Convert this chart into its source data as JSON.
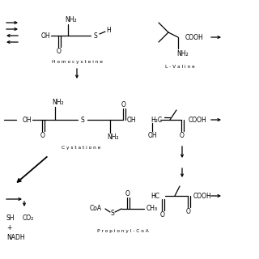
{
  "labels": {
    "homocysteine": "H o m o c y s t e i n e",
    "lvaline": "L - V a l i n e",
    "cystathione": "C y s t a t i o n e",
    "propionylcoa": "P r o p i o n y l - C o A"
  }
}
